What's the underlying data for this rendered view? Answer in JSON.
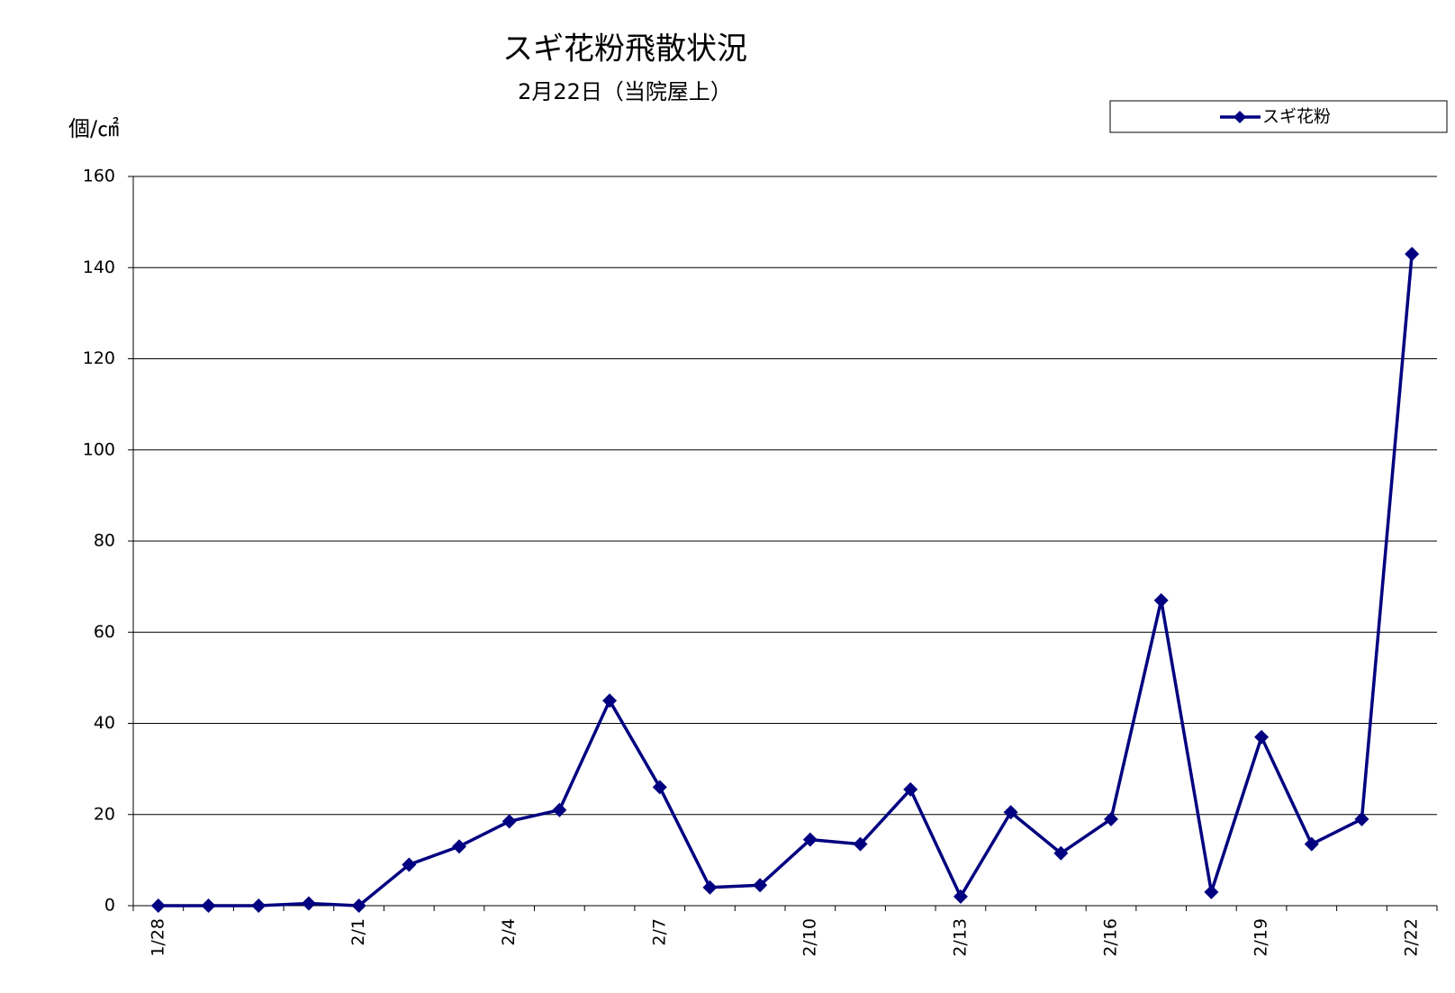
{
  "chart_data": {
    "type": "line",
    "title": "スギ花粉飛散状況",
    "subtitle": "2月22日（当院屋上）",
    "y_label": "個/㎠",
    "categories": [
      "1/28",
      null,
      null,
      null,
      "2/1",
      null,
      null,
      "2/4",
      null,
      null,
      "2/7",
      null,
      null,
      "2/10",
      null,
      null,
      "2/13",
      null,
      null,
      "2/16",
      null,
      null,
      "2/19",
      null,
      null,
      "2/22"
    ],
    "series": [
      {
        "name": "スギ花粉",
        "color": "#000080",
        "values": [
          0,
          0,
          0,
          0.5,
          0,
          9,
          13,
          18.5,
          21,
          45,
          26,
          4,
          4.5,
          14.5,
          13.5,
          25.5,
          2,
          20.5,
          11.5,
          19,
          67,
          3,
          37,
          13.5,
          19,
          143
        ]
      }
    ],
    "ylim": [
      0,
      160
    ],
    "yticks": [
      0,
      20,
      40,
      60,
      80,
      100,
      120,
      140,
      160
    ],
    "grid": true,
    "legend": "top-right"
  }
}
